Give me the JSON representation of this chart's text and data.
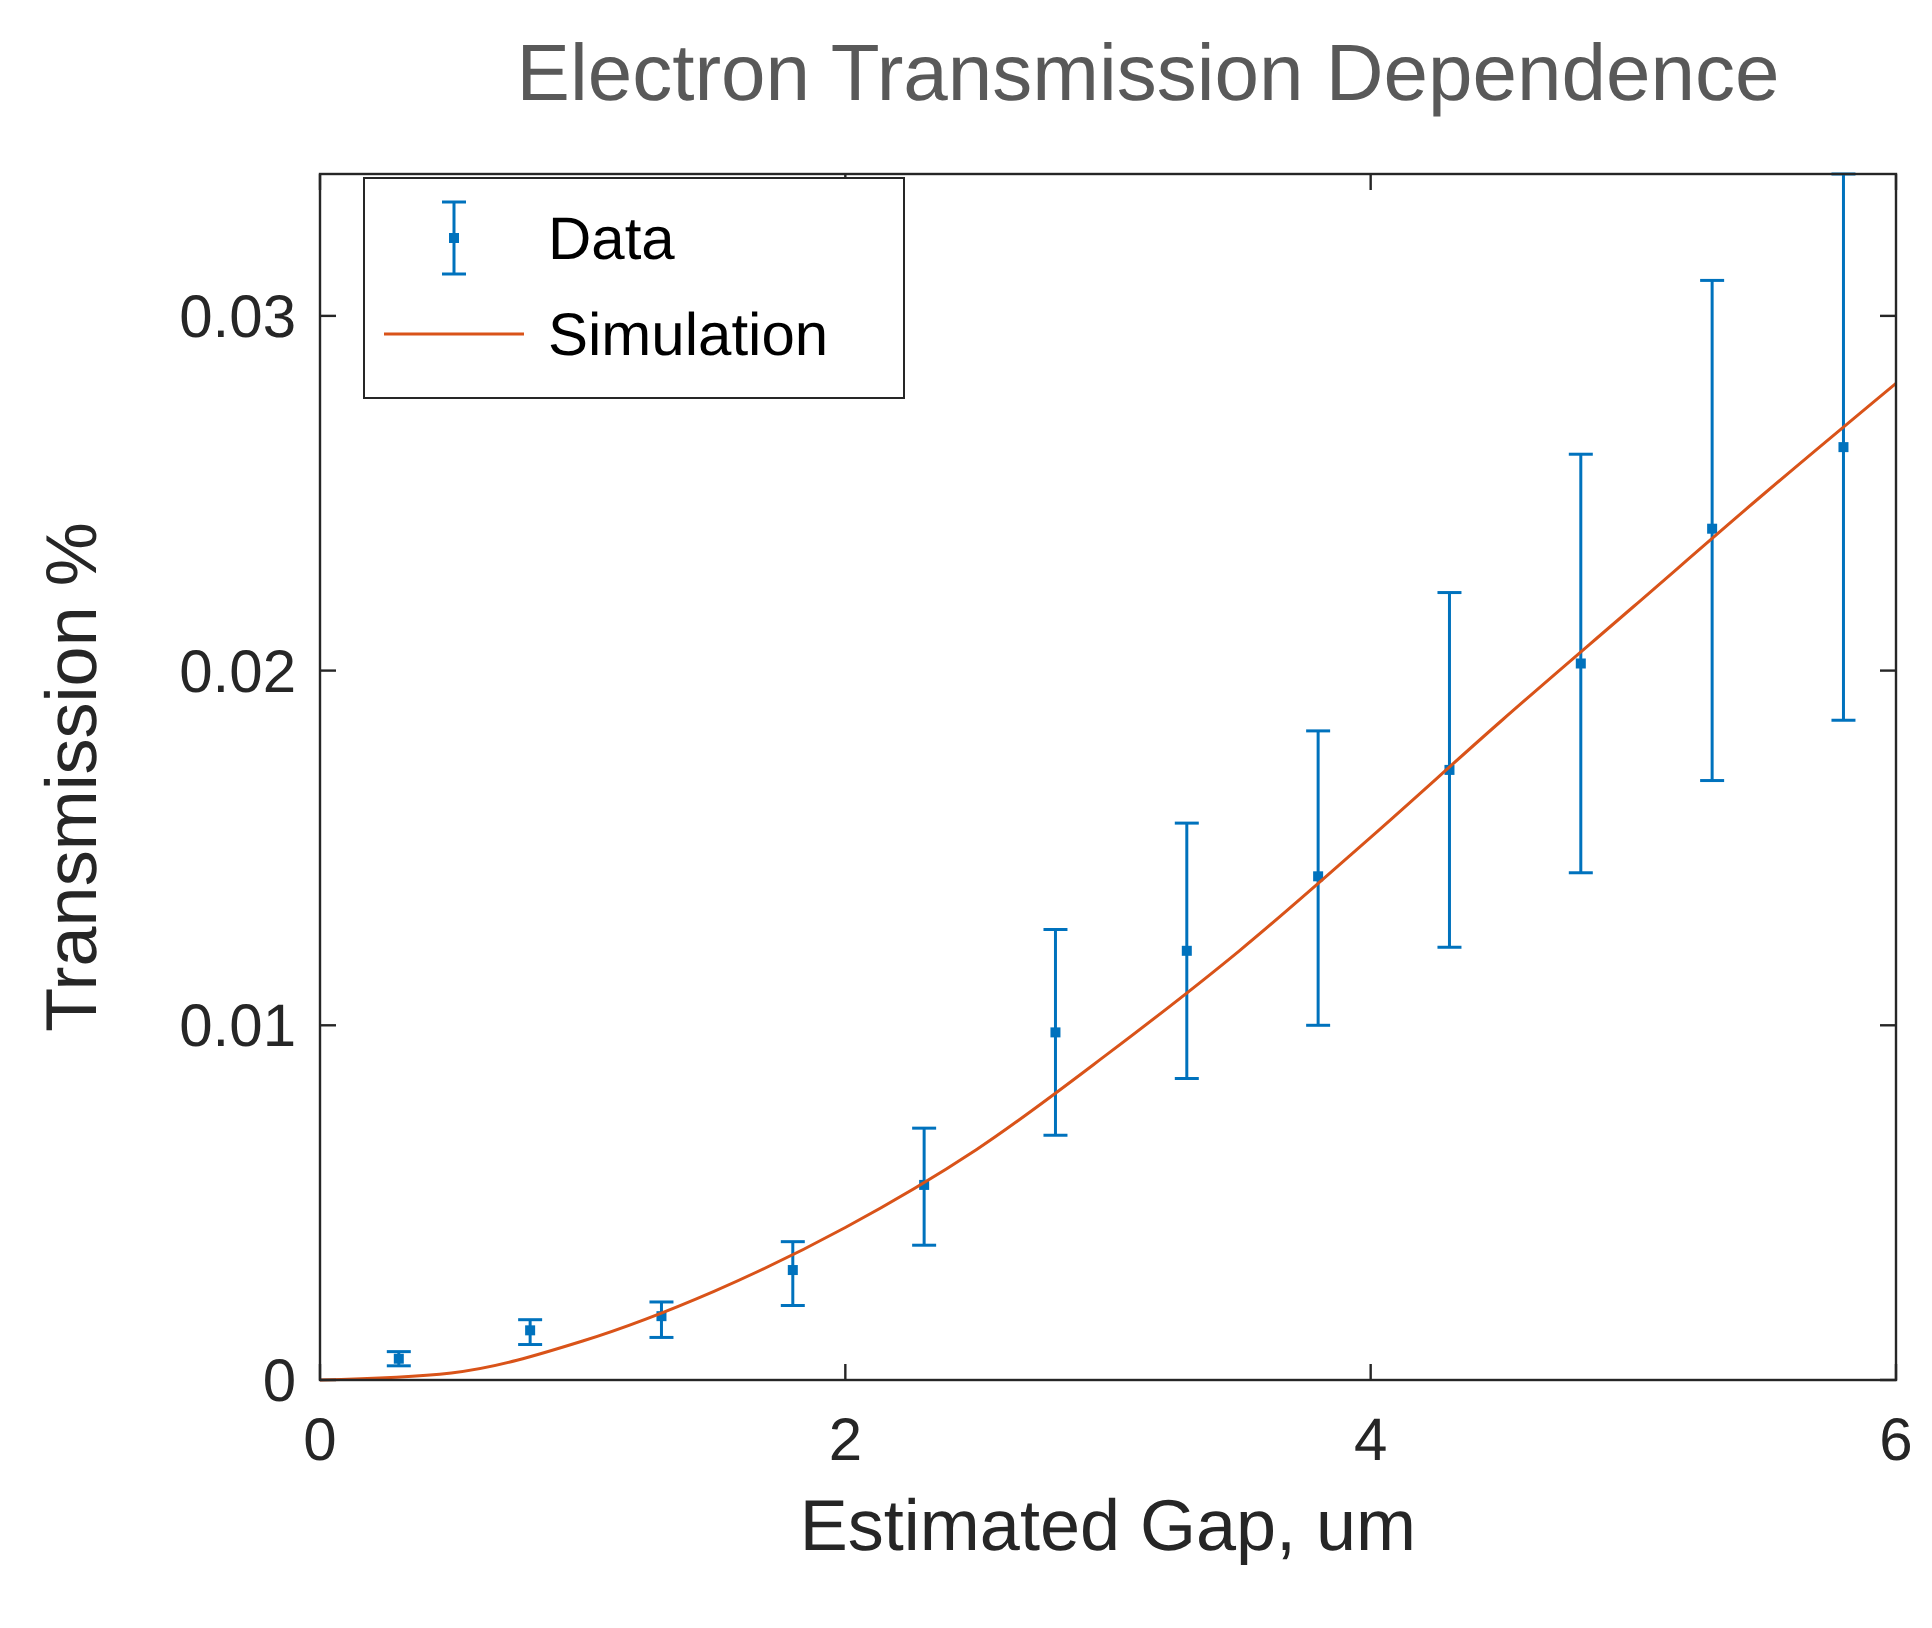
{
  "chart_data": {
    "type": "scatter",
    "title": "Electron Transmission Dependence",
    "xlabel": "Estimated Gap, um",
    "ylabel": "Transmission %",
    "xlim": [
      0,
      6
    ],
    "ylim": [
      0,
      0.034
    ],
    "xticks": [
      0,
      2,
      4,
      6
    ],
    "yticks": [
      0,
      0.01,
      0.02,
      0.03
    ],
    "grid": false,
    "legend": "top left",
    "series": [
      {
        "name": "Data",
        "color": "#0072bd",
        "marker": "square",
        "x": [
          0.3,
          0.8,
          1.3,
          1.8,
          2.3,
          2.8,
          3.3,
          3.8,
          4.3,
          4.8,
          5.3,
          5.8
        ],
        "values": [
          0.0006,
          0.0014,
          0.0018,
          0.0031,
          0.0055,
          0.0098,
          0.0121,
          0.0142,
          0.0172,
          0.0202,
          0.024,
          0.0263
        ],
        "errors": [
          [
            0.0004,
            0.0008
          ],
          [
            0.001,
            0.0017
          ],
          [
            0.0012,
            0.0022
          ],
          [
            0.0021,
            0.0039
          ],
          [
            0.0038,
            0.0071
          ],
          [
            0.0069,
            0.0127
          ],
          [
            0.0085,
            0.0157
          ],
          [
            0.01,
            0.0183
          ],
          [
            0.0122,
            0.0222
          ],
          [
            0.0143,
            0.0261
          ],
          [
            0.0169,
            0.031
          ],
          [
            0.0186,
            0.034
          ]
        ]
      },
      {
        "name": "Simulation",
        "type": "line",
        "color": "#d95319",
        "marker": "none",
        "line_style": "solid",
        "x": [
          0,
          0.5,
          1,
          1.5,
          2,
          2.5,
          3,
          3.5,
          4,
          4.5,
          5,
          5.5,
          6
        ],
        "values": [
          0,
          0.0002,
          0.0011,
          0.0025,
          0.0043,
          0.0065,
          0.0092,
          0.0121,
          0.0153,
          0.0186,
          0.0218,
          0.025,
          0.0281
        ]
      }
    ]
  }
}
